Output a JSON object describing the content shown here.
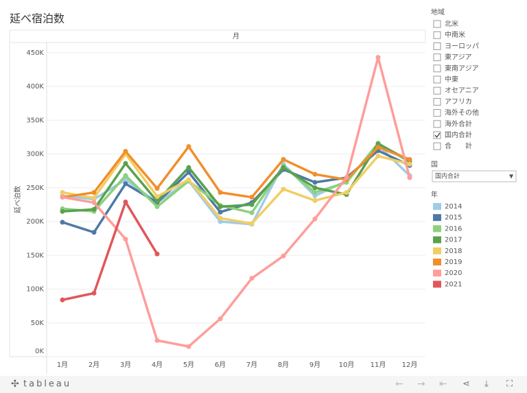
{
  "chart_data": {
    "type": "line",
    "title": "延べ宿泊数",
    "header": "月",
    "y_label": "延べ泊数",
    "categories": [
      "1月",
      "2月",
      "3月",
      "4月",
      "5月",
      "6月",
      "7月",
      "8月",
      "9月",
      "10月",
      "11月",
      "12月"
    ],
    "ylim": [
      0,
      465000
    ],
    "yticks": [
      {
        "value": 0,
        "label": "0K"
      },
      {
        "value": 50000,
        "label": "50K"
      },
      {
        "value": 100000,
        "label": "100K"
      },
      {
        "value": 150000,
        "label": "150K"
      },
      {
        "value": 200000,
        "label": "200K"
      },
      {
        "value": 250000,
        "label": "250K"
      },
      {
        "value": 300000,
        "label": "300K"
      },
      {
        "value": 350000,
        "label": "350K"
      },
      {
        "value": 400000,
        "label": "400K"
      },
      {
        "value": 450000,
        "label": "450K"
      }
    ],
    "grid": true,
    "legend_title": "年",
    "series": [
      {
        "name": "2014",
        "color": "#a0cbe8",
        "values": [
          238000,
          233000,
          262000,
          228000,
          260000,
          200000,
          196000,
          285000,
          238000,
          260000,
          313000,
          268000
        ]
      },
      {
        "name": "2015",
        "color": "#4e79a7",
        "values": [
          199000,
          184000,
          256000,
          228000,
          273000,
          214000,
          228000,
          277000,
          258000,
          265000,
          305000,
          283000
        ]
      },
      {
        "name": "2016",
        "color": "#8cd17d",
        "values": [
          219000,
          215000,
          268000,
          222000,
          260000,
          224000,
          213000,
          282000,
          243000,
          258000,
          316000,
          288000
        ]
      },
      {
        "name": "2017",
        "color": "#59a14f",
        "values": [
          215000,
          218000,
          286000,
          230000,
          280000,
          222000,
          225000,
          280000,
          250000,
          240000,
          315000,
          290000
        ]
      },
      {
        "name": "2018",
        "color": "#f1ce63",
        "values": [
          243000,
          235000,
          300000,
          237000,
          262000,
          205000,
          197000,
          248000,
          231000,
          243000,
          297000,
          285000
        ]
      },
      {
        "name": "2019",
        "color": "#f28e2b",
        "values": [
          236000,
          243000,
          304000,
          249000,
          311000,
          243000,
          236000,
          292000,
          270000,
          262000,
          310000,
          292000
        ]
      },
      {
        "name": "2020",
        "color": "#ff9d9a",
        "values": [
          236000,
          228000,
          174000,
          24000,
          15000,
          56000,
          116000,
          149000,
          204000,
          265000,
          443000,
          265000
        ]
      },
      {
        "name": "2021",
        "color": "#e15759",
        "values": [
          84000,
          94000,
          229000,
          152000,
          null,
          null,
          null,
          null,
          null,
          null,
          null,
          null
        ]
      }
    ]
  },
  "region_filter": {
    "title": "地域",
    "items": [
      {
        "label": "北米",
        "checked": false
      },
      {
        "label": "中南米",
        "checked": false
      },
      {
        "label": "ヨーロッパ",
        "checked": false
      },
      {
        "label": "東アジア",
        "checked": false
      },
      {
        "label": "東南アジア",
        "checked": false
      },
      {
        "label": "中東",
        "checked": false
      },
      {
        "label": "オセアニア",
        "checked": false
      },
      {
        "label": "アフリカ",
        "checked": false
      },
      {
        "label": "海外その他",
        "checked": false
      },
      {
        "label": "海外合計",
        "checked": false
      },
      {
        "label": "国内合計",
        "checked": true
      },
      {
        "label": "合　　計",
        "checked": false
      }
    ]
  },
  "country_filter": {
    "title": "国",
    "selected": "国内合計"
  },
  "footer": {
    "logo": "tableau"
  }
}
